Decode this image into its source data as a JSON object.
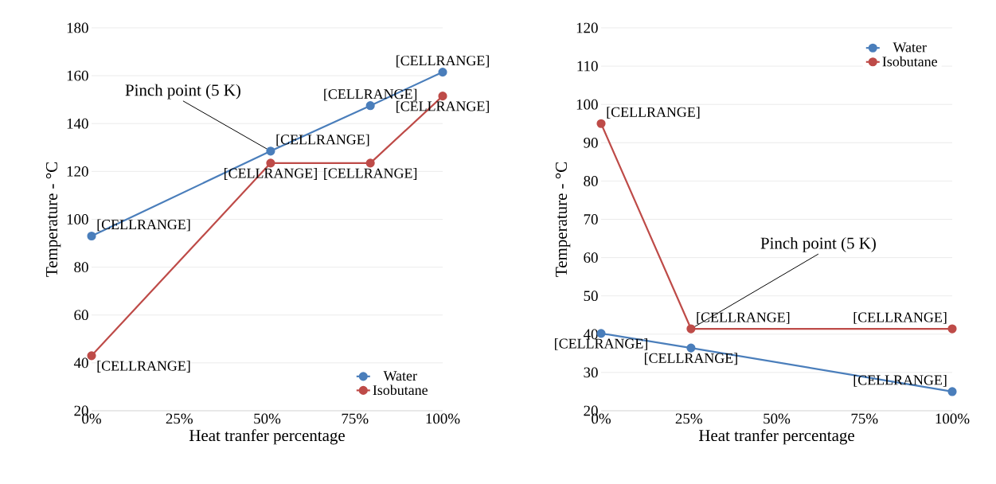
{
  "chart_data": [
    {
      "type": "line",
      "xlabel": "Heat tranfer percentage",
      "ylabel": "Temperature - °C",
      "x": [
        0,
        0.51,
        0.794,
        1
      ],
      "series": [
        {
          "name": "Water",
          "color": "#4a7ebb",
          "values": [
            93,
            128.5,
            147.5,
            161.5
          ],
          "value_labels": [
            "[CELLRANGE]",
            "[CELLRANGE]",
            "[CELLRANGE]",
            "[CELLRANGE]"
          ]
        },
        {
          "name": "Isobutane",
          "color": "#be4b48",
          "values": [
            43,
            123.5,
            123.5,
            151.5
          ],
          "value_labels": [
            "[CELLRANGE]",
            "[CELLRANGE]",
            "[CELLRANGE]",
            "[CELLRANGE]"
          ]
        }
      ],
      "xlim": [
        0,
        1
      ],
      "ylim": [
        20,
        180
      ],
      "xticks": [
        {
          "value": 0,
          "label": "0%"
        },
        {
          "value": 0.25,
          "label": "25%"
        },
        {
          "value": 0.5,
          "label": "50%"
        },
        {
          "value": 0.75,
          "label": "75%"
        },
        {
          "value": 1,
          "label": "100%"
        }
      ],
      "yticks": [
        20,
        40,
        60,
        80,
        100,
        120,
        140,
        160,
        180
      ],
      "grid": "y",
      "legend": "bottom right",
      "marker": "circle",
      "line_style": "solid",
      "annotations": [
        {
          "text": "Pinch point (5 K)",
          "x": 0.51,
          "y": 128.5
        }
      ]
    },
    {
      "type": "line",
      "xlabel": "Heat tranfer percentage",
      "ylabel": "Temperature - °C",
      "x": [
        0,
        0.256,
        1
      ],
      "series": [
        {
          "name": "Water",
          "color": "#4a7ebb",
          "values": [
            40.2,
            36.4,
            25
          ],
          "value_labels": [
            "[CELLRANGE]",
            "[CELLRANGE]",
            "[CELLRANGE]"
          ]
        },
        {
          "name": "Isobutane",
          "color": "#be4b48",
          "values": [
            95,
            41.4,
            41.4
          ],
          "value_labels": [
            "[CELLRANGE]",
            "[CELLRANGE]",
            "[CELLRANGE]"
          ]
        }
      ],
      "xlim": [
        0,
        1
      ],
      "ylim": [
        20,
        120
      ],
      "xticks": [
        {
          "value": 0,
          "label": "0%"
        },
        {
          "value": 0.25,
          "label": "25%"
        },
        {
          "value": 0.5,
          "label": "50%"
        },
        {
          "value": 0.75,
          "label": "75%"
        },
        {
          "value": 1,
          "label": "100%"
        }
      ],
      "yticks": [
        20,
        30,
        40,
        50,
        60,
        70,
        80,
        90,
        100,
        110,
        120
      ],
      "grid": "y",
      "legend": "top right",
      "marker": "circle",
      "line_style": "solid",
      "annotations": [
        {
          "text": "Pinch point (5 K)",
          "x": 0.256,
          "y": 41.4
        }
      ]
    }
  ]
}
